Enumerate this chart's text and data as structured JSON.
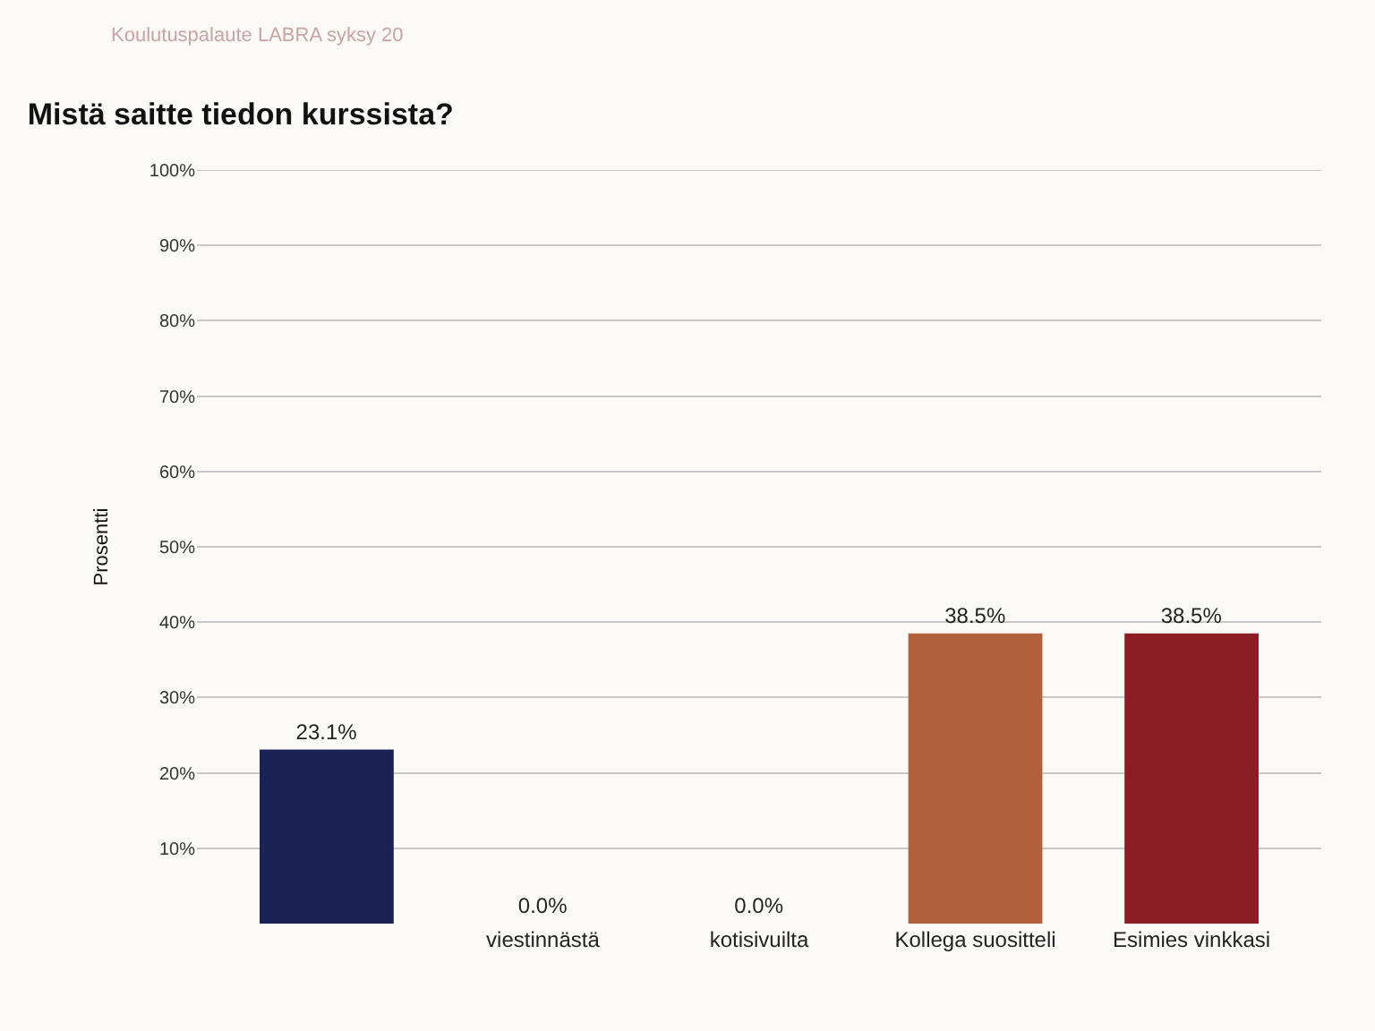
{
  "chart_data": {
    "type": "bar",
    "title": "Mistä saitte tiedon kurssista?",
    "ylabel": "Prosentti",
    "annotations": [
      "Koulutuspalaute LABRA syksy 20"
    ],
    "categories": [
      null,
      "viestinnästä",
      "kotisivuilta",
      "Kollega suositteli",
      "Esimies vinkkasi"
    ],
    "values": [
      23.1,
      0.0,
      0.0,
      38.5,
      38.5
    ],
    "value_labels": [
      "23.1%",
      "0.0%",
      "0.0%",
      "38.5%",
      "38.5%"
    ],
    "colors": [
      "#1b2356",
      "#4a3a6a",
      "#8a4a4a",
      "#b0603a",
      "#8b1e24"
    ],
    "ylim": [
      0,
      100
    ],
    "yticks": [
      {
        "value": 10,
        "label": "10%"
      },
      {
        "value": 20,
        "label": "20%"
      },
      {
        "value": 30,
        "label": "30%"
      },
      {
        "value": 40,
        "label": "40%"
      },
      {
        "value": 50,
        "label": "50%"
      },
      {
        "value": 60,
        "label": "60%"
      },
      {
        "value": 70,
        "label": "70%"
      },
      {
        "value": 80,
        "label": "80%"
      },
      {
        "value": 90,
        "label": "90%"
      },
      {
        "value": 100,
        "label": "100%"
      }
    ],
    "grid": "y"
  }
}
